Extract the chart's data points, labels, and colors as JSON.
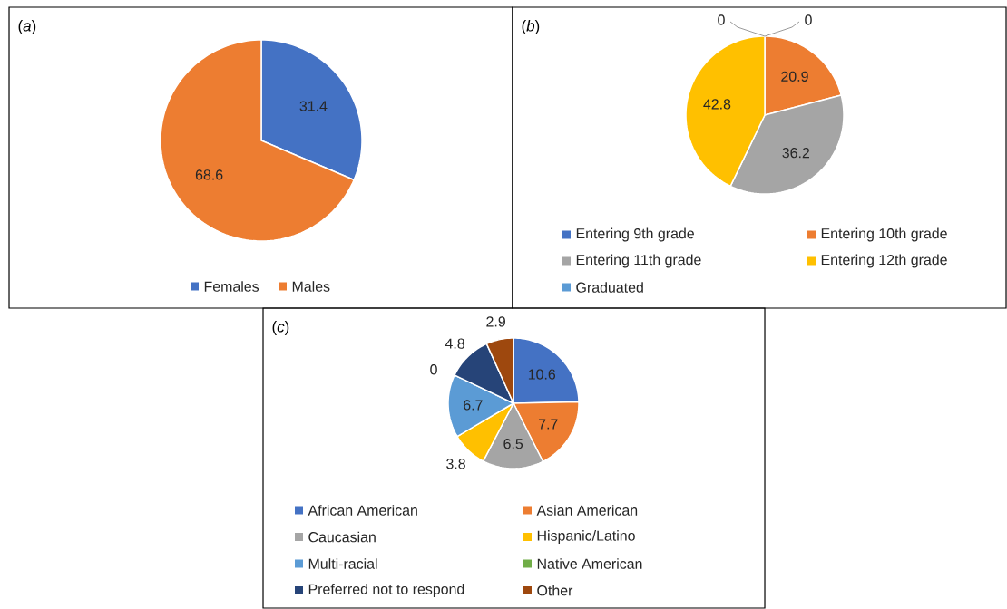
{
  "chart_data": [
    {
      "type": "pie",
      "title": "(*a*)",
      "categories": [
        "Females",
        "Males"
      ],
      "values": [
        31.4,
        68.6
      ],
      "colors": [
        "#4472c4",
        "#ed7d31"
      ],
      "data_labels": true,
      "legend": "bottom"
    },
    {
      "type": "pie",
      "title": "(*b*)",
      "categories": [
        "Entering 9th grade",
        "Entering 10th grade",
        "Entering 11th grade",
        "Entering 12th grade",
        "Graduated"
      ],
      "values": [
        0,
        20.9,
        36.2,
        42.8,
        0
      ],
      "colors": [
        "#4472c4",
        "#ed7d31",
        "#a5a5a5",
        "#ffc000",
        "#5b9bd5"
      ],
      "value_labels": [
        "0",
        "20.9",
        "36.2",
        "42.8",
        "0"
      ],
      "legend": "bottom"
    },
    {
      "type": "pie",
      "title": "(*c*)",
      "categories": [
        "African American",
        "Asian American",
        "Caucasian",
        "Hispanic/Latino",
        "Multi-racial",
        "Native American",
        "Preferred not to respond",
        "Other"
      ],
      "values": [
        10.6,
        7.7,
        6.5,
        3.8,
        6.7,
        0,
        4.8,
        2.9
      ],
      "colors": [
        "#4472c4",
        "#ed7d31",
        "#a5a5a5",
        "#ffc000",
        "#5b9bd5",
        "#70ad47",
        "#264478",
        "#9e480e"
      ],
      "value_labels": [
        "10.6",
        "7.7",
        "6.5",
        "3.8",
        "6.7",
        "0",
        "4.8",
        "2.9"
      ],
      "legend": "bottom"
    }
  ]
}
